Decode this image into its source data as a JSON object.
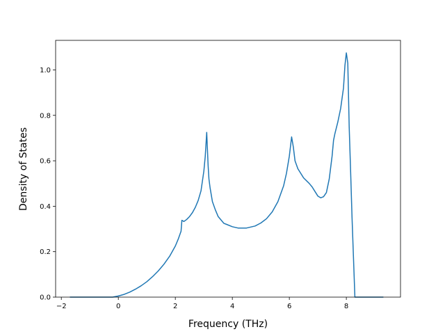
{
  "chart_data": {
    "type": "line",
    "title": "",
    "xlabel": "Frequency (THz)",
    "ylabel": "Density of States",
    "xlim": [
      -2.2,
      9.9
    ],
    "ylim": [
      0.0,
      1.13
    ],
    "xticks": [
      -2,
      0,
      2,
      4,
      6,
      8
    ],
    "yticks": [
      0.0,
      0.2,
      0.4,
      0.6,
      0.8,
      1.0
    ],
    "xtick_labels": [
      "−2",
      "0",
      "2",
      "4",
      "6",
      "8"
    ],
    "ytick_labels": [
      "0.0",
      "0.2",
      "0.4",
      "0.6",
      "0.8",
      "1.0"
    ],
    "grid": false,
    "legend": "none",
    "colors": {
      "series": "#1f77b4"
    },
    "series": [
      {
        "x": [
          -1.7,
          -0.6,
          -0.2,
          0.0,
          0.2,
          0.4,
          0.6,
          0.8,
          1.0,
          1.2,
          1.4,
          1.6,
          1.8,
          2.0,
          2.1,
          2.2,
          2.23,
          2.3,
          2.4,
          2.5,
          2.6,
          2.7,
          2.8,
          2.9,
          3.0,
          3.05,
          3.1,
          3.15,
          3.18,
          3.22,
          3.3,
          3.4,
          3.5,
          3.6,
          3.7,
          3.8,
          4.0,
          4.2,
          4.5,
          4.8,
          5.0,
          5.2,
          5.4,
          5.6,
          5.8,
          5.9,
          6.0,
          6.08,
          6.14,
          6.2,
          6.3,
          6.5,
          6.7,
          6.8,
          6.9,
          7.0,
          7.1,
          7.2,
          7.3,
          7.4,
          7.5,
          7.55,
          7.6,
          7.7,
          7.8,
          7.9,
          7.95,
          8.0,
          8.05,
          8.1,
          8.15,
          8.2,
          8.3,
          8.35,
          8.45,
          8.6,
          9.3
        ],
        "y": [
          0.0,
          0.0,
          0.0,
          0.005,
          0.012,
          0.022,
          0.035,
          0.05,
          0.068,
          0.09,
          0.115,
          0.145,
          0.18,
          0.225,
          0.255,
          0.29,
          0.338,
          0.333,
          0.342,
          0.355,
          0.372,
          0.395,
          0.425,
          0.468,
          0.555,
          0.62,
          0.725,
          0.58,
          0.52,
          0.48,
          0.42,
          0.385,
          0.355,
          0.34,
          0.325,
          0.32,
          0.31,
          0.304,
          0.304,
          0.313,
          0.326,
          0.345,
          0.375,
          0.42,
          0.49,
          0.545,
          0.62,
          0.705,
          0.66,
          0.6,
          0.565,
          0.525,
          0.5,
          0.485,
          0.465,
          0.445,
          0.437,
          0.442,
          0.46,
          0.52,
          0.62,
          0.69,
          0.72,
          0.77,
          0.83,
          0.92,
          1.02,
          1.075,
          1.03,
          0.75,
          0.55,
          0.35,
          0.0,
          0.0,
          0.0,
          0.0,
          0.0
        ]
      }
    ]
  }
}
